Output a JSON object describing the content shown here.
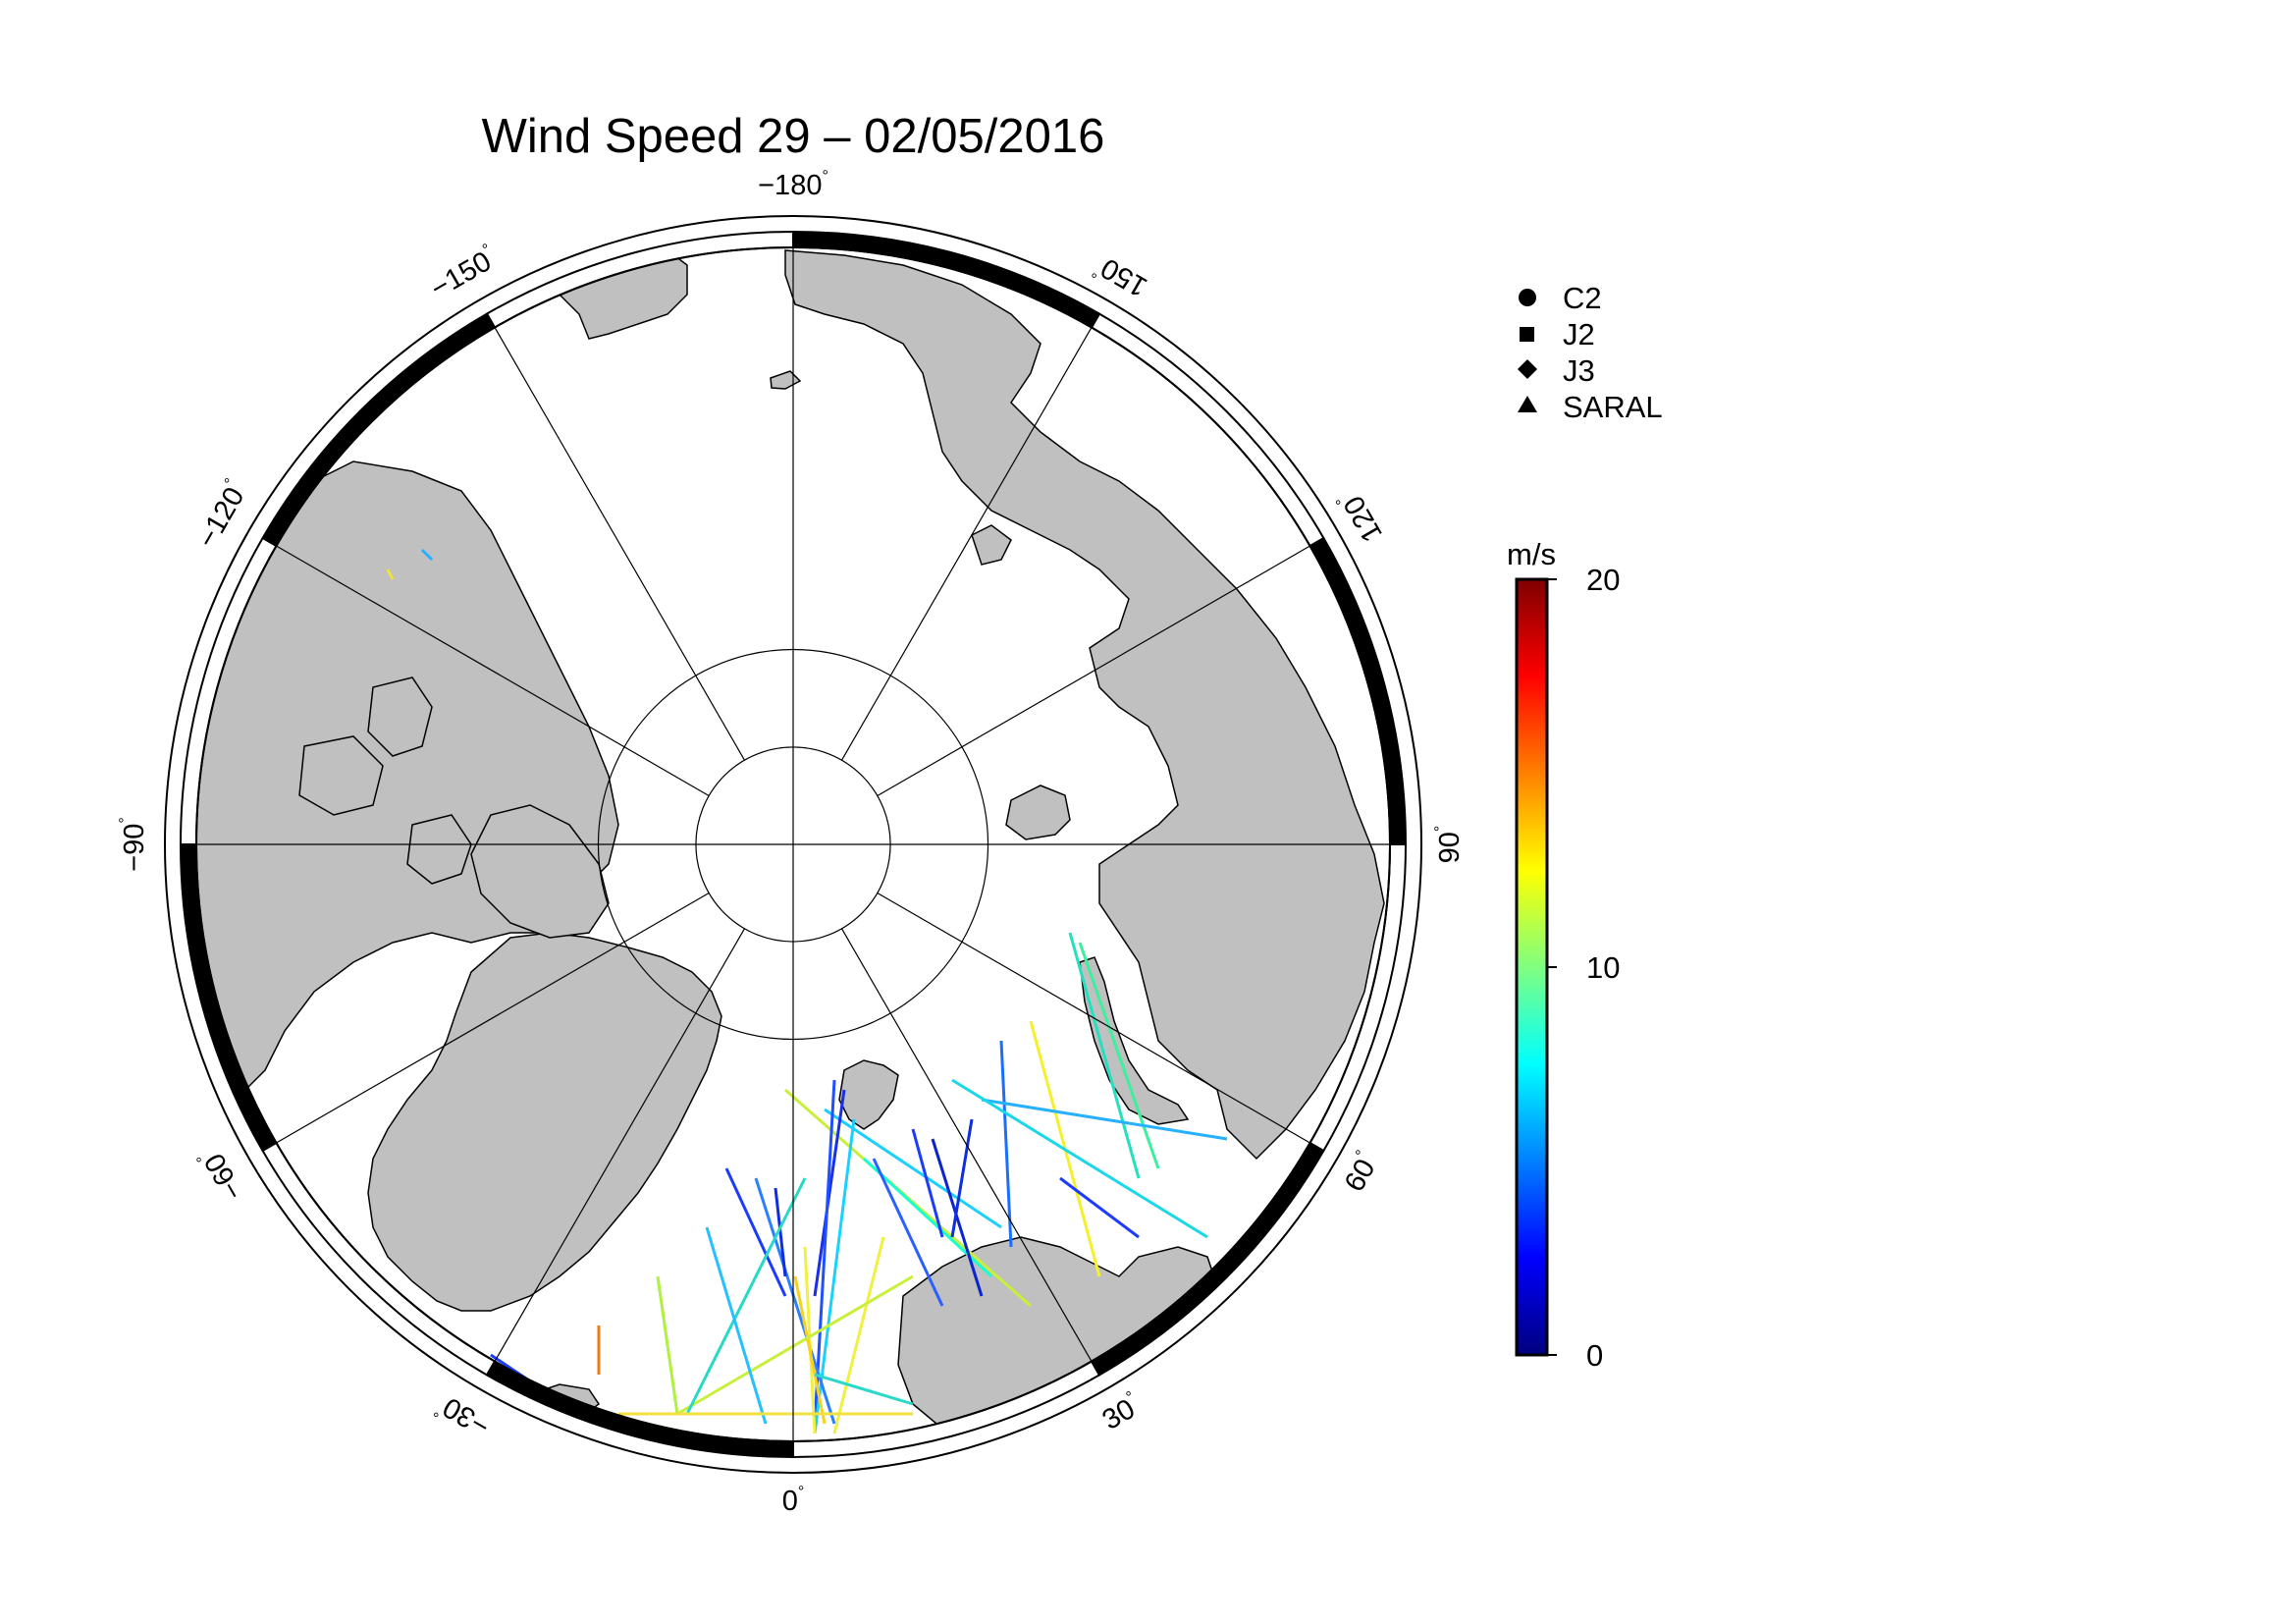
{
  "title": "Wind Speed 29 – 02/05/2016",
  "longitude_labels": [
    {
      "lon": -180,
      "text": "−180"
    },
    {
      "lon": -150,
      "text": "−150"
    },
    {
      "lon": -120,
      "text": "−120"
    },
    {
      "lon": -90,
      "text": "−90"
    },
    {
      "lon": -60,
      "text": "−60"
    },
    {
      "lon": -30,
      "text": "−30"
    },
    {
      "lon": 0,
      "text": "0"
    },
    {
      "lon": 30,
      "text": "30"
    },
    {
      "lon": 60,
      "text": "60"
    },
    {
      "lon": 90,
      "text": "90"
    },
    {
      "lon": 120,
      "text": "120"
    },
    {
      "lon": 150,
      "text": "150"
    }
  ],
  "degree_symbol": "°",
  "legend": [
    {
      "symbol": "circle",
      "label": "C2"
    },
    {
      "symbol": "square",
      "label": "J2"
    },
    {
      "symbol": "diamond",
      "label": "J3"
    },
    {
      "symbol": "triangle",
      "label": "SARAL"
    }
  ],
  "colorbar": {
    "unit": "m/s",
    "min": 0,
    "max": 20,
    "ticks": [
      {
        "value": 20,
        "label": "20"
      },
      {
        "value": 10,
        "label": "10"
      },
      {
        "value": 0,
        "label": "0"
      }
    ],
    "colormap": "jet"
  },
  "colors": {
    "land": "#c0c0c0",
    "ocean": "#ffffff",
    "graticule": "#000000",
    "frame": "#000000"
  },
  "map": {
    "projection": "north polar stereographic",
    "lon_at_bottom": 0,
    "graticule_lons": [
      0,
      30,
      60,
      90,
      120,
      150,
      180,
      210,
      240,
      270,
      300,
      330
    ],
    "graticule_lats": [
      80,
      85
    ]
  },
  "chart_data": {
    "type": "scatter",
    "title": "Wind Speed 29 – 02/05/2016",
    "series": [
      {
        "name": "C2",
        "values": []
      },
      {
        "name": "J2",
        "values": []
      },
      {
        "name": "J3",
        "values": []
      },
      {
        "name": "SARAL",
        "values": []
      }
    ],
    "colorbar_range": [
      0,
      20
    ],
    "colorbar_unit": "m/s"
  }
}
